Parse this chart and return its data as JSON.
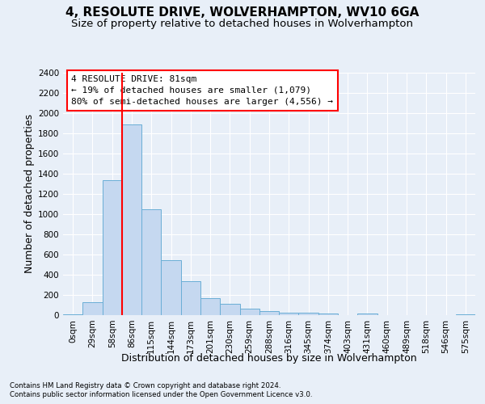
{
  "title": "4, RESOLUTE DRIVE, WOLVERHAMPTON, WV10 6GA",
  "subtitle": "Size of property relative to detached houses in Wolverhampton",
  "xlabel": "Distribution of detached houses by size in Wolverhampton",
  "ylabel": "Number of detached properties",
  "bar_labels": [
    "0sqm",
    "29sqm",
    "58sqm",
    "86sqm",
    "115sqm",
    "144sqm",
    "173sqm",
    "201sqm",
    "230sqm",
    "259sqm",
    "288sqm",
    "316sqm",
    "345sqm",
    "374sqm",
    "403sqm",
    "431sqm",
    "460sqm",
    "489sqm",
    "518sqm",
    "546sqm",
    "575sqm"
  ],
  "bar_values": [
    10,
    125,
    1340,
    1890,
    1045,
    545,
    335,
    165,
    110,
    62,
    38,
    28,
    22,
    18,
    0,
    20,
    0,
    0,
    0,
    0,
    12
  ],
  "bar_color": "#c5d8f0",
  "bar_edge_color": "#6aaed6",
  "vline_x": 2.5,
  "annotation_title": "4 RESOLUTE DRIVE: 81sqm",
  "annotation_line1": "← 19% of detached houses are smaller (1,079)",
  "annotation_line2": "80% of semi-detached houses are larger (4,556) →",
  "ylim_max": 2400,
  "yticks": [
    0,
    200,
    400,
    600,
    800,
    1000,
    1200,
    1400,
    1600,
    1800,
    2000,
    2200,
    2400
  ],
  "footnote1": "Contains HM Land Registry data © Crown copyright and database right 2024.",
  "footnote2": "Contains public sector information licensed under the Open Government Licence v3.0.",
  "bg_color": "#e8eff8",
  "grid_color": "#ffffff",
  "title_fontsize": 11,
  "subtitle_fontsize": 9.5,
  "axis_label_fontsize": 9,
  "tick_fontsize": 7.5,
  "annotation_fontsize": 8
}
